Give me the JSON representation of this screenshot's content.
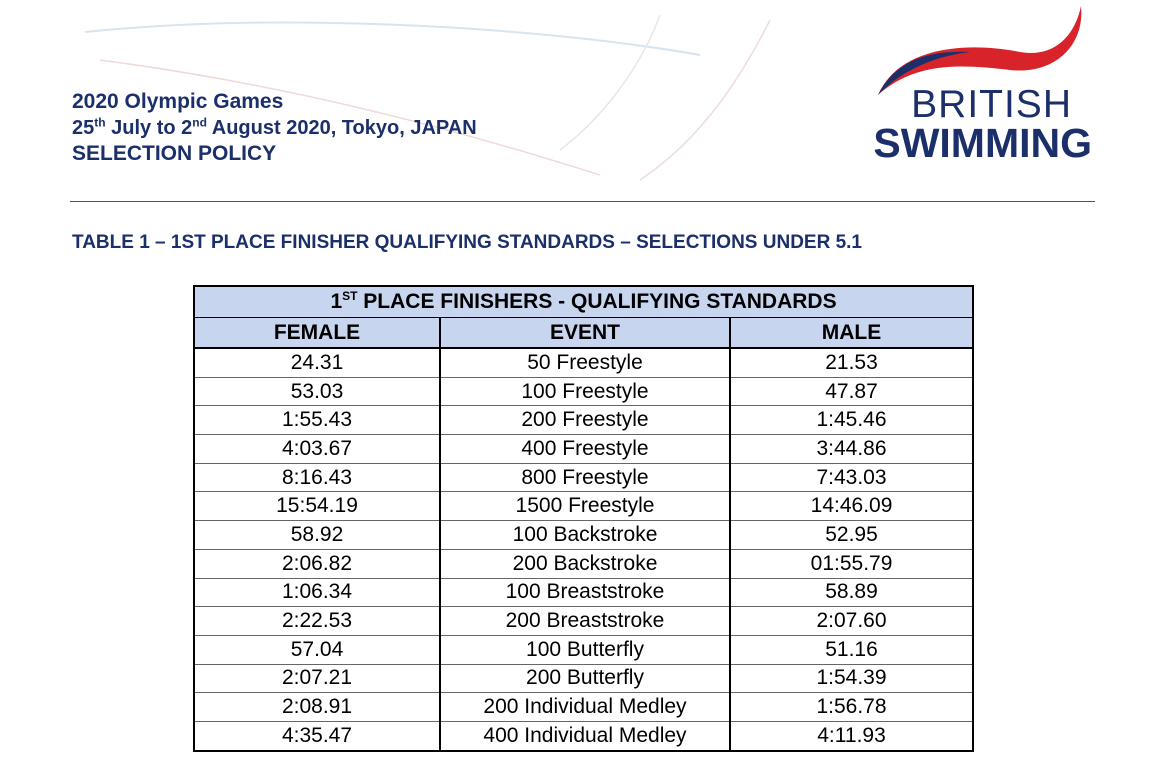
{
  "header": {
    "title": "2020 Olympic Games",
    "dates_prefix": "25",
    "dates_sup1": "th",
    "dates_mid": " July to 2",
    "dates_sup2": "nd",
    "dates_suffix": " August 2020, Tokyo, JAPAN",
    "policy": "SELECTION POLICY"
  },
  "logo": {
    "line1": "BRITISH",
    "line2": "SWIMMING",
    "colors": {
      "red": "#d8232a",
      "blue": "#1b2f6b"
    }
  },
  "section_title": "TABLE 1 – 1ST PLACE FINISHER QUALIFYING STANDARDS – SELECTIONS UNDER 5.1",
  "table": {
    "title_prefix": "1",
    "title_sup": "ST",
    "title_suffix": " PLACE FINISHERS - QUALIFYING STANDARDS",
    "columns": [
      "FEMALE",
      "EVENT",
      "MALE"
    ],
    "rows": [
      [
        "24.31",
        "50 Freestyle",
        "21.53"
      ],
      [
        "53.03",
        "100 Freestyle",
        "47.87"
      ],
      [
        "1:55.43",
        "200 Freestyle",
        "1:45.46"
      ],
      [
        "4:03.67",
        "400 Freestyle",
        "3:44.86"
      ],
      [
        "8:16.43",
        "800 Freestyle",
        "7:43.03"
      ],
      [
        "15:54.19",
        "1500 Freestyle",
        "14:46.09"
      ],
      [
        "58.92",
        "100 Backstroke",
        "52.95"
      ],
      [
        "2:06.82",
        "200 Backstroke",
        "01:55.79"
      ],
      [
        "1:06.34",
        "100 Breaststroke",
        "58.89"
      ],
      [
        "2:22.53",
        "200 Breaststroke",
        "2:07.60"
      ],
      [
        "57.04",
        "100 Butterfly",
        "51.16"
      ],
      [
        "2:07.21",
        "200 Butterfly",
        "1:54.39"
      ],
      [
        "2:08.91",
        "200 Individual Medley",
        "1:56.78"
      ],
      [
        "4:35.47",
        "400 Individual Medley",
        "4:11.93"
      ]
    ],
    "header_bg": "#c7d5ee"
  }
}
